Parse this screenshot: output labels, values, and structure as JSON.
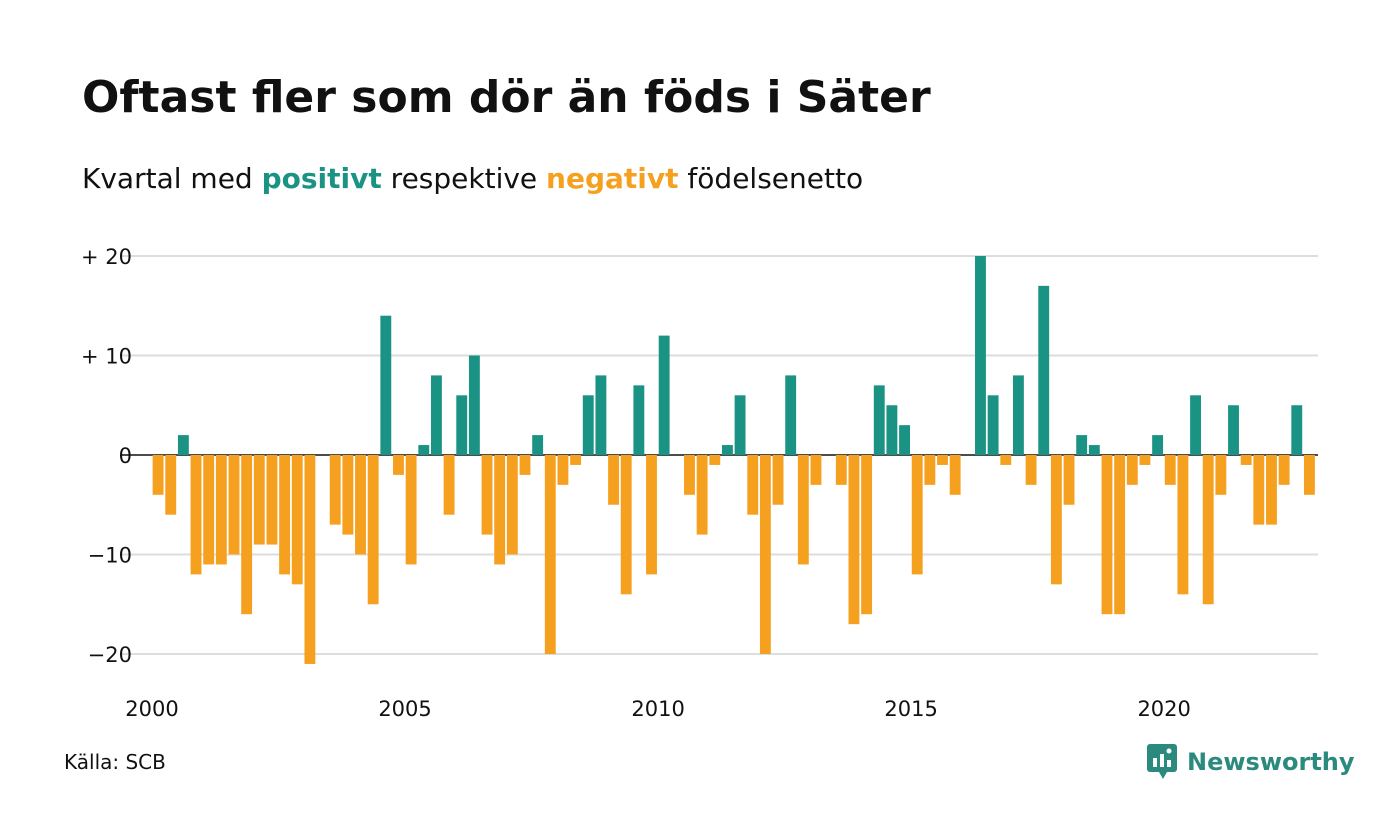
{
  "title": "Oftast fler som dör än föds i Säter",
  "subtitle": {
    "part1": "Kvartal med ",
    "positive": "positivt",
    "part2": " respektive ",
    "negative": "negativt",
    "part3": " födelsenetto"
  },
  "source": "Källa: SCB",
  "logo": {
    "text": "Newsworthy",
    "icon": "newsworthy-logo-icon"
  },
  "colors": {
    "positive": "#1a9384",
    "negative": "#f6a020",
    "grid": "#dddddd"
  },
  "chart_data": {
    "type": "bar",
    "x_start": 2000,
    "x_step": 0.25,
    "xlim": [
      2000,
      2023
    ],
    "ylim": [
      -23,
      20
    ],
    "y_ticks": [
      20,
      10,
      0,
      -10,
      -20
    ],
    "y_tick_labels": [
      "+ 20",
      "+ 10",
      "0",
      "−10",
      "−20"
    ],
    "x_ticks": [
      2000,
      2005,
      2010,
      2015,
      2020
    ],
    "x_tick_labels": [
      "2000",
      "2005",
      "2010",
      "2015",
      "2020"
    ],
    "grid": true,
    "values": [
      -4,
      -6,
      2,
      -12,
      -11,
      -11,
      -10,
      -16,
      -9,
      -9,
      -12,
      -13,
      -21,
      0,
      -7,
      -8,
      -10,
      -15,
      14,
      -2,
      -11,
      1,
      8,
      -6,
      6,
      10,
      -8,
      -11,
      -10,
      -2,
      2,
      -20,
      -3,
      -1,
      6,
      8,
      -5,
      -14,
      7,
      -12,
      12,
      0,
      -4,
      -8,
      -1,
      1,
      6,
      -6,
      -20,
      -5,
      8,
      -11,
      -3,
      0,
      -3,
      -17,
      -16,
      7,
      5,
      3,
      -12,
      -3,
      -1,
      -4,
      0,
      20,
      6,
      -1,
      8,
      -3,
      17,
      -13,
      -5,
      2,
      1,
      -16,
      -16,
      -3,
      -1,
      2,
      -3,
      -14,
      6,
      -15,
      -4,
      5,
      -1,
      -7,
      -7,
      -3,
      5,
      -4
    ]
  }
}
